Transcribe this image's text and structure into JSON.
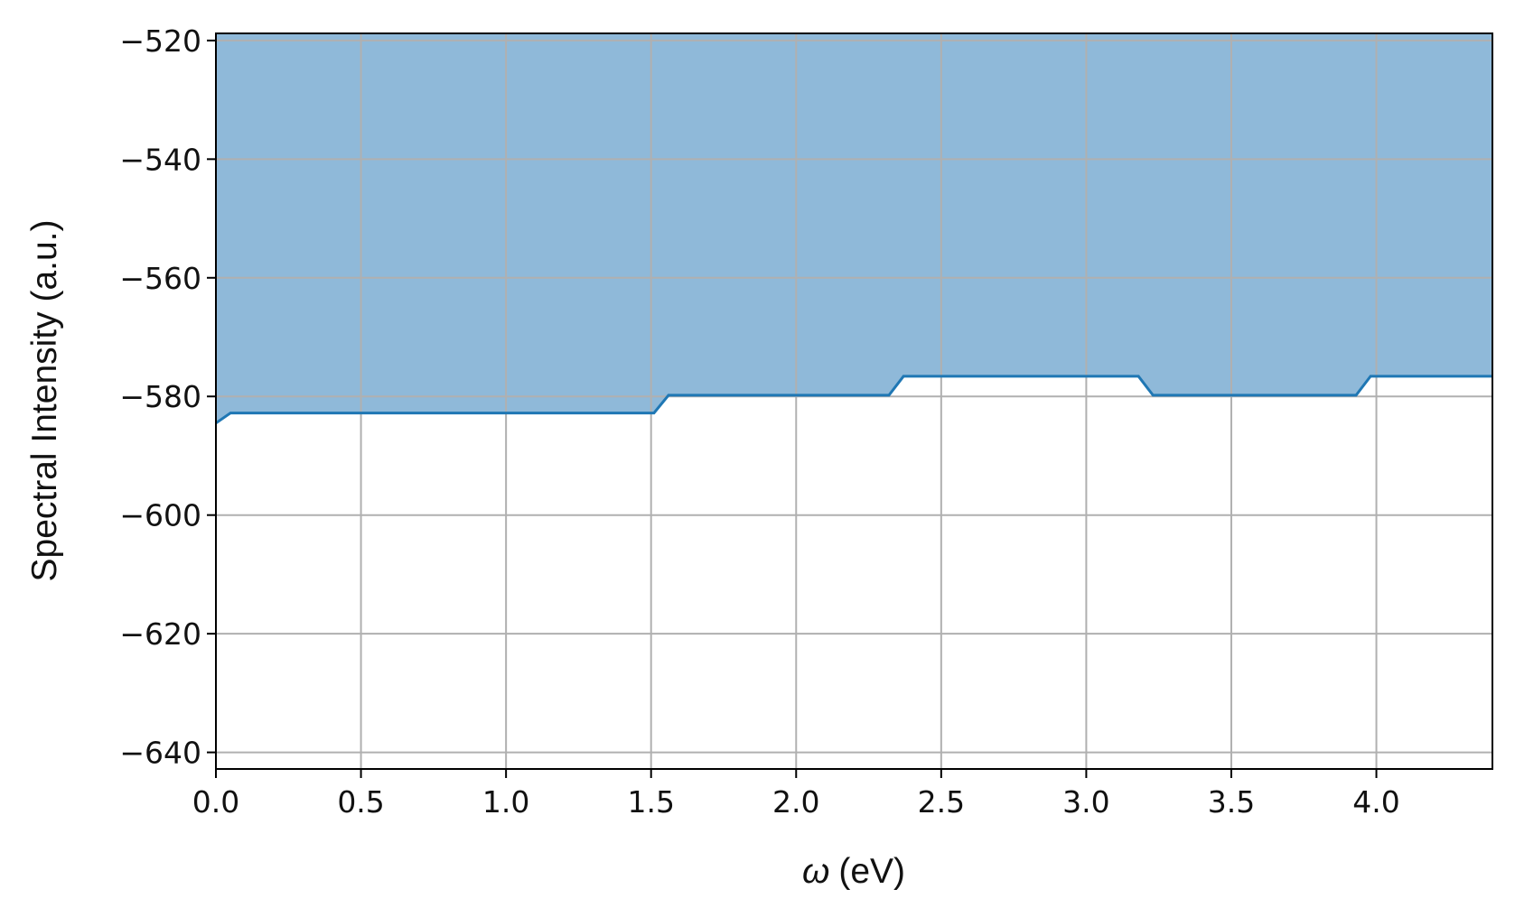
{
  "chart_data": {
    "type": "area",
    "title": "",
    "xlabel_symbol": "ω",
    "xlabel_unit": "(eV)",
    "ylabel": "Spectral Intensity (a.u.)",
    "xlim": [
      0,
      4.4
    ],
    "ylim": [
      -642.8,
      -518.8
    ],
    "grid": true,
    "fill_to": "top",
    "colors": {
      "line": "#1f77b4",
      "fill": "#8fb9d9",
      "grid": "#b0b0b0",
      "axes": "#000000"
    },
    "x_ticks": [
      0.0,
      0.5,
      1.0,
      1.5,
      2.0,
      2.5,
      3.0,
      3.5,
      4.0
    ],
    "x_tick_labels": [
      "0.0",
      "0.5",
      "1.0",
      "1.5",
      "2.0",
      "2.5",
      "3.0",
      "3.5",
      "4.0"
    ],
    "y_ticks": [
      -520,
      -540,
      -560,
      -580,
      -600,
      -620,
      -640
    ],
    "y_tick_labels": [
      "−520",
      "−540",
      "−560",
      "−580",
      "−600",
      "−620",
      "−640"
    ],
    "series": [
      {
        "x": [
          0.0,
          0.05,
          1.51,
          1.56,
          2.32,
          2.37,
          3.18,
          3.23,
          3.93,
          3.98,
          4.4
        ],
        "y": [
          -584.5,
          -582.8,
          -582.8,
          -579.8,
          -579.8,
          -576.6,
          -576.6,
          -579.8,
          -579.8,
          -576.6,
          -576.6
        ]
      }
    ]
  }
}
